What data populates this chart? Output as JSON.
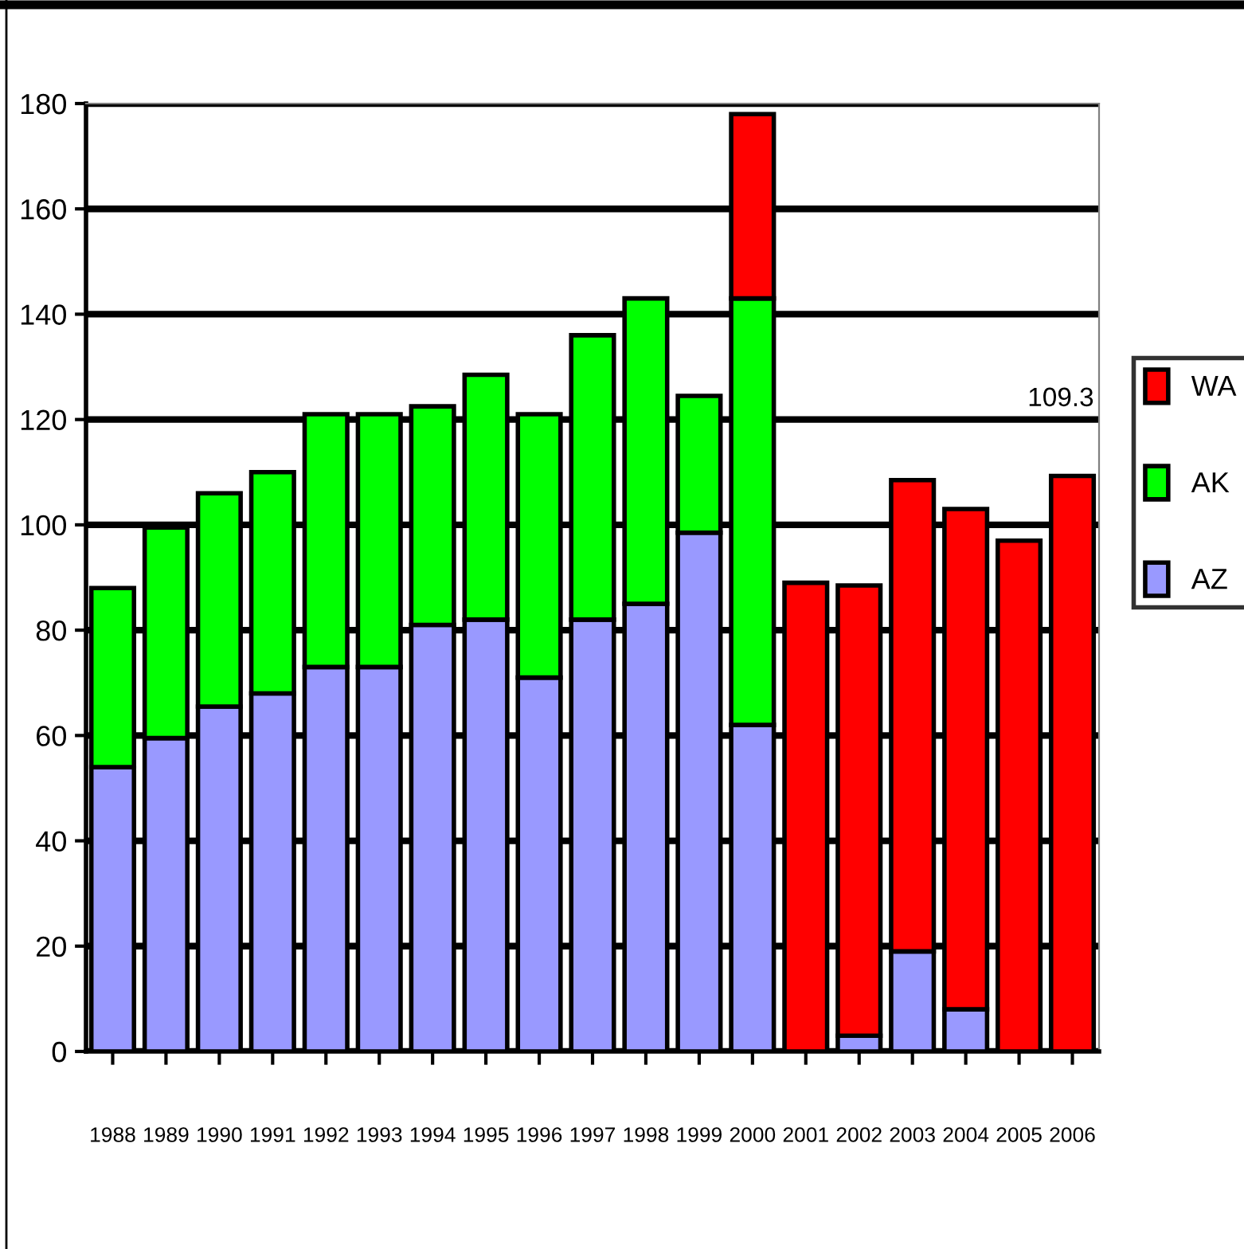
{
  "chart_data": {
    "type": "bar",
    "stacked": true,
    "categories": [
      "1988",
      "1989",
      "1990",
      "1991",
      "1992",
      "1993",
      "1994",
      "1995",
      "1996",
      "1997",
      "1998",
      "1999",
      "2000",
      "2001",
      "2002",
      "2003",
      "2004",
      "2005",
      "2006"
    ],
    "series": [
      {
        "name": "AZ",
        "color": "#9999ff",
        "values": [
          54,
          59.5,
          65.5,
          68,
          73,
          73,
          81,
          82,
          71,
          82,
          85,
          98.5,
          62,
          null,
          3,
          19,
          8,
          null,
          null
        ]
      },
      {
        "name": "AK",
        "color": "#00ff00",
        "values": [
          34,
          40,
          40.5,
          42,
          48,
          48,
          41.5,
          46.5,
          50,
          54,
          58,
          26,
          81,
          null,
          null,
          null,
          null,
          null,
          null
        ]
      },
      {
        "name": "WA",
        "color": "#ff0000",
        "values": [
          null,
          null,
          null,
          null,
          null,
          null,
          null,
          null,
          null,
          null,
          null,
          null,
          35,
          89,
          85.5,
          89.5,
          95,
          97,
          109.3
        ]
      }
    ],
    "ylim": [
      0,
      180
    ],
    "yticks": [
      0,
      20,
      40,
      60,
      80,
      100,
      120,
      140,
      160,
      180
    ],
    "grid": "y",
    "legend": "right",
    "annotations": [
      "109.3"
    ]
  }
}
